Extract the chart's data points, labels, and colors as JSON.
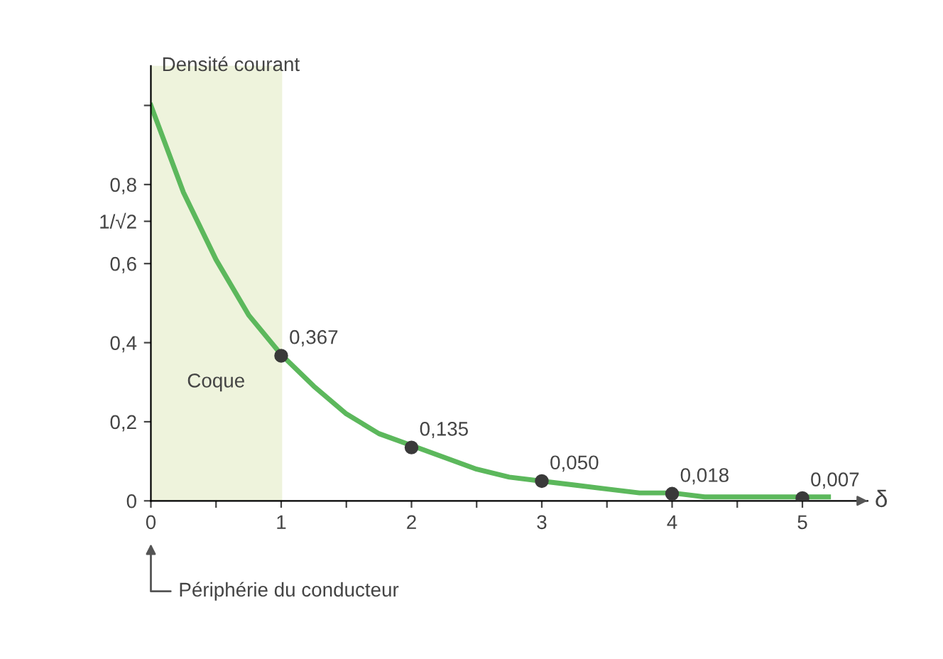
{
  "chart_data": {
    "type": "line",
    "ylabel": "Densité courant",
    "xlabel": "δ",
    "xlim": [
      0,
      5.5
    ],
    "ylim": [
      0,
      1.1
    ],
    "xticks": [
      0,
      {
        "value": 0.5,
        "label": null
      },
      1,
      {
        "value": 1.5,
        "label": null
      },
      2,
      {
        "value": 2.5,
        "label": null
      },
      3,
      {
        "value": 3.5,
        "label": null
      },
      4,
      {
        "value": 4.5,
        "label": null
      },
      5
    ],
    "yticks": [
      {
        "value": 0,
        "label": "0"
      },
      {
        "value": 0.2,
        "label": "0,2"
      },
      {
        "value": 0.4,
        "label": "0,4"
      },
      {
        "value": 0.6,
        "label": "0,6"
      },
      {
        "value": 0.707,
        "label": "1/√2"
      },
      {
        "value": 0.8,
        "label": "0,8"
      },
      {
        "value": 1,
        "label": null
      }
    ],
    "grid": false,
    "series": [
      {
        "color": "#5cb85c",
        "marker": "none",
        "x": [
          0,
          0.25,
          0.5,
          0.75,
          1,
          1.25,
          1.5,
          1.75,
          2,
          2.25,
          2.5,
          2.75,
          3,
          3.25,
          3.5,
          3.75,
          4,
          4.25,
          4.5,
          4.75,
          5,
          5.2
        ],
        "values": [
          1.0,
          0.78,
          0.61,
          0.47,
          0.37,
          0.29,
          0.22,
          0.17,
          0.14,
          0.11,
          0.08,
          0.06,
          0.05,
          0.04,
          0.03,
          0.02,
          0.02,
          0.01,
          0.01,
          0.01,
          0.01,
          0.01
        ]
      },
      {
        "type": "scatter",
        "color": "#3a3a3a",
        "marker": "circle",
        "x": [
          1,
          2,
          3,
          4,
          5
        ],
        "values": [
          0.367,
          0.135,
          0.05,
          0.018,
          0.007
        ],
        "value_labels": [
          "0,367",
          "0,135",
          "0,050",
          "0,018",
          "0,007"
        ]
      }
    ],
    "bands": [
      {
        "axis": "x",
        "from": 0,
        "to": 1,
        "label": "Coque",
        "color": "#eef3dc"
      }
    ],
    "annotations": [
      "Périphérie du conducteur"
    ]
  }
}
